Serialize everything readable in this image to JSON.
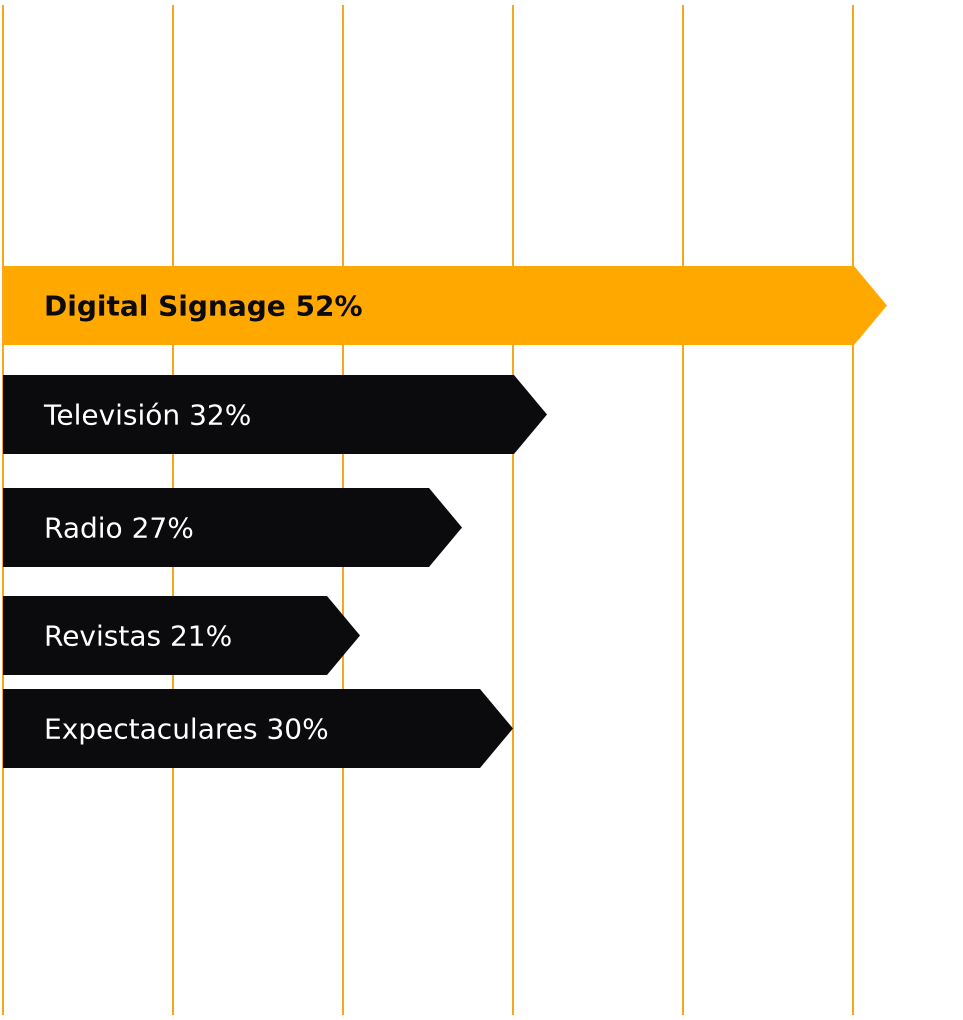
{
  "colors": {
    "accent": "#FFA800",
    "bar_default": "#0B0A0C",
    "label_default": "#FFFFFF",
    "label_highlight": "#0B0A0C",
    "gridline": "#F5A81C",
    "background": "#FFFFFF"
  },
  "chart_data": {
    "type": "bar",
    "orientation": "horizontal",
    "xlim": [
      0,
      60
    ],
    "grid": true,
    "bar_shape": "arrow",
    "categories": [
      "Digital Signage",
      "Televisión",
      "Radio",
      "Revistas",
      "Expectaculares"
    ],
    "values": [
      52,
      32,
      27,
      21,
      30
    ],
    "data_labels": [
      "Digital Signage 52%",
      "Televisión 32%",
      "Radio 27%",
      "Revistas 21%",
      "Expectaculares 30%"
    ],
    "highlighted": [
      true,
      false,
      false,
      false,
      false
    ]
  }
}
